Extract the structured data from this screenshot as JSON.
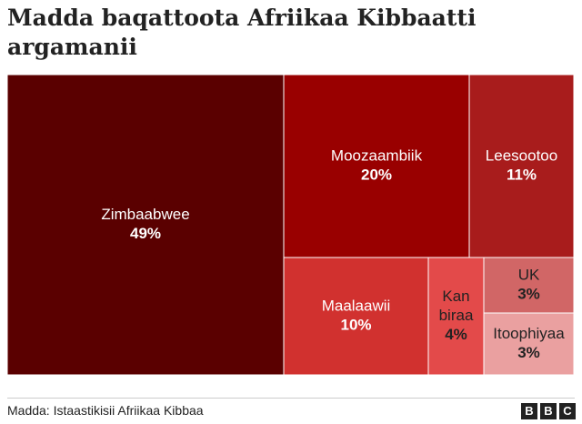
{
  "title": "Madda baqattoota Afriikaa Kibbaatti argamanii",
  "source": "Madda: Istaastikisii Afriikaa Kibbaa",
  "logo": [
    "B",
    "B",
    "C"
  ],
  "chart_data": {
    "type": "treemap",
    "title": "Madda baqattoota Afriikaa Kibbaatti argamanii",
    "unit": "%",
    "items": [
      {
        "label": "Zimbaabwee",
        "value_label": "49%",
        "value": 49,
        "color": "#5a0000",
        "text_color": "#ffffff"
      },
      {
        "label": "Moozaambiik",
        "value_label": "20%",
        "value": 20,
        "color": "#990000",
        "text_color": "#ffffff"
      },
      {
        "label": "Leesootoo",
        "value_label": "11%",
        "value": 11,
        "color": "#a81c1c",
        "text_color": "#ffffff"
      },
      {
        "label": "Maalaawii",
        "value_label": "10%",
        "value": 10,
        "color": "#d1312f",
        "text_color": "#ffffff"
      },
      {
        "label": "Kan biraa",
        "value_label": "4%",
        "value": 4,
        "color": "#e34a4a",
        "text_color": "#222222"
      },
      {
        "label": "UK",
        "value_label": "3%",
        "value": 3,
        "color": "#d16666",
        "text_color": "#222222"
      },
      {
        "label": "Itoophiyaa",
        "value_label": "3%",
        "value": 3,
        "color": "#eaa0a0",
        "text_color": "#222222"
      }
    ]
  }
}
